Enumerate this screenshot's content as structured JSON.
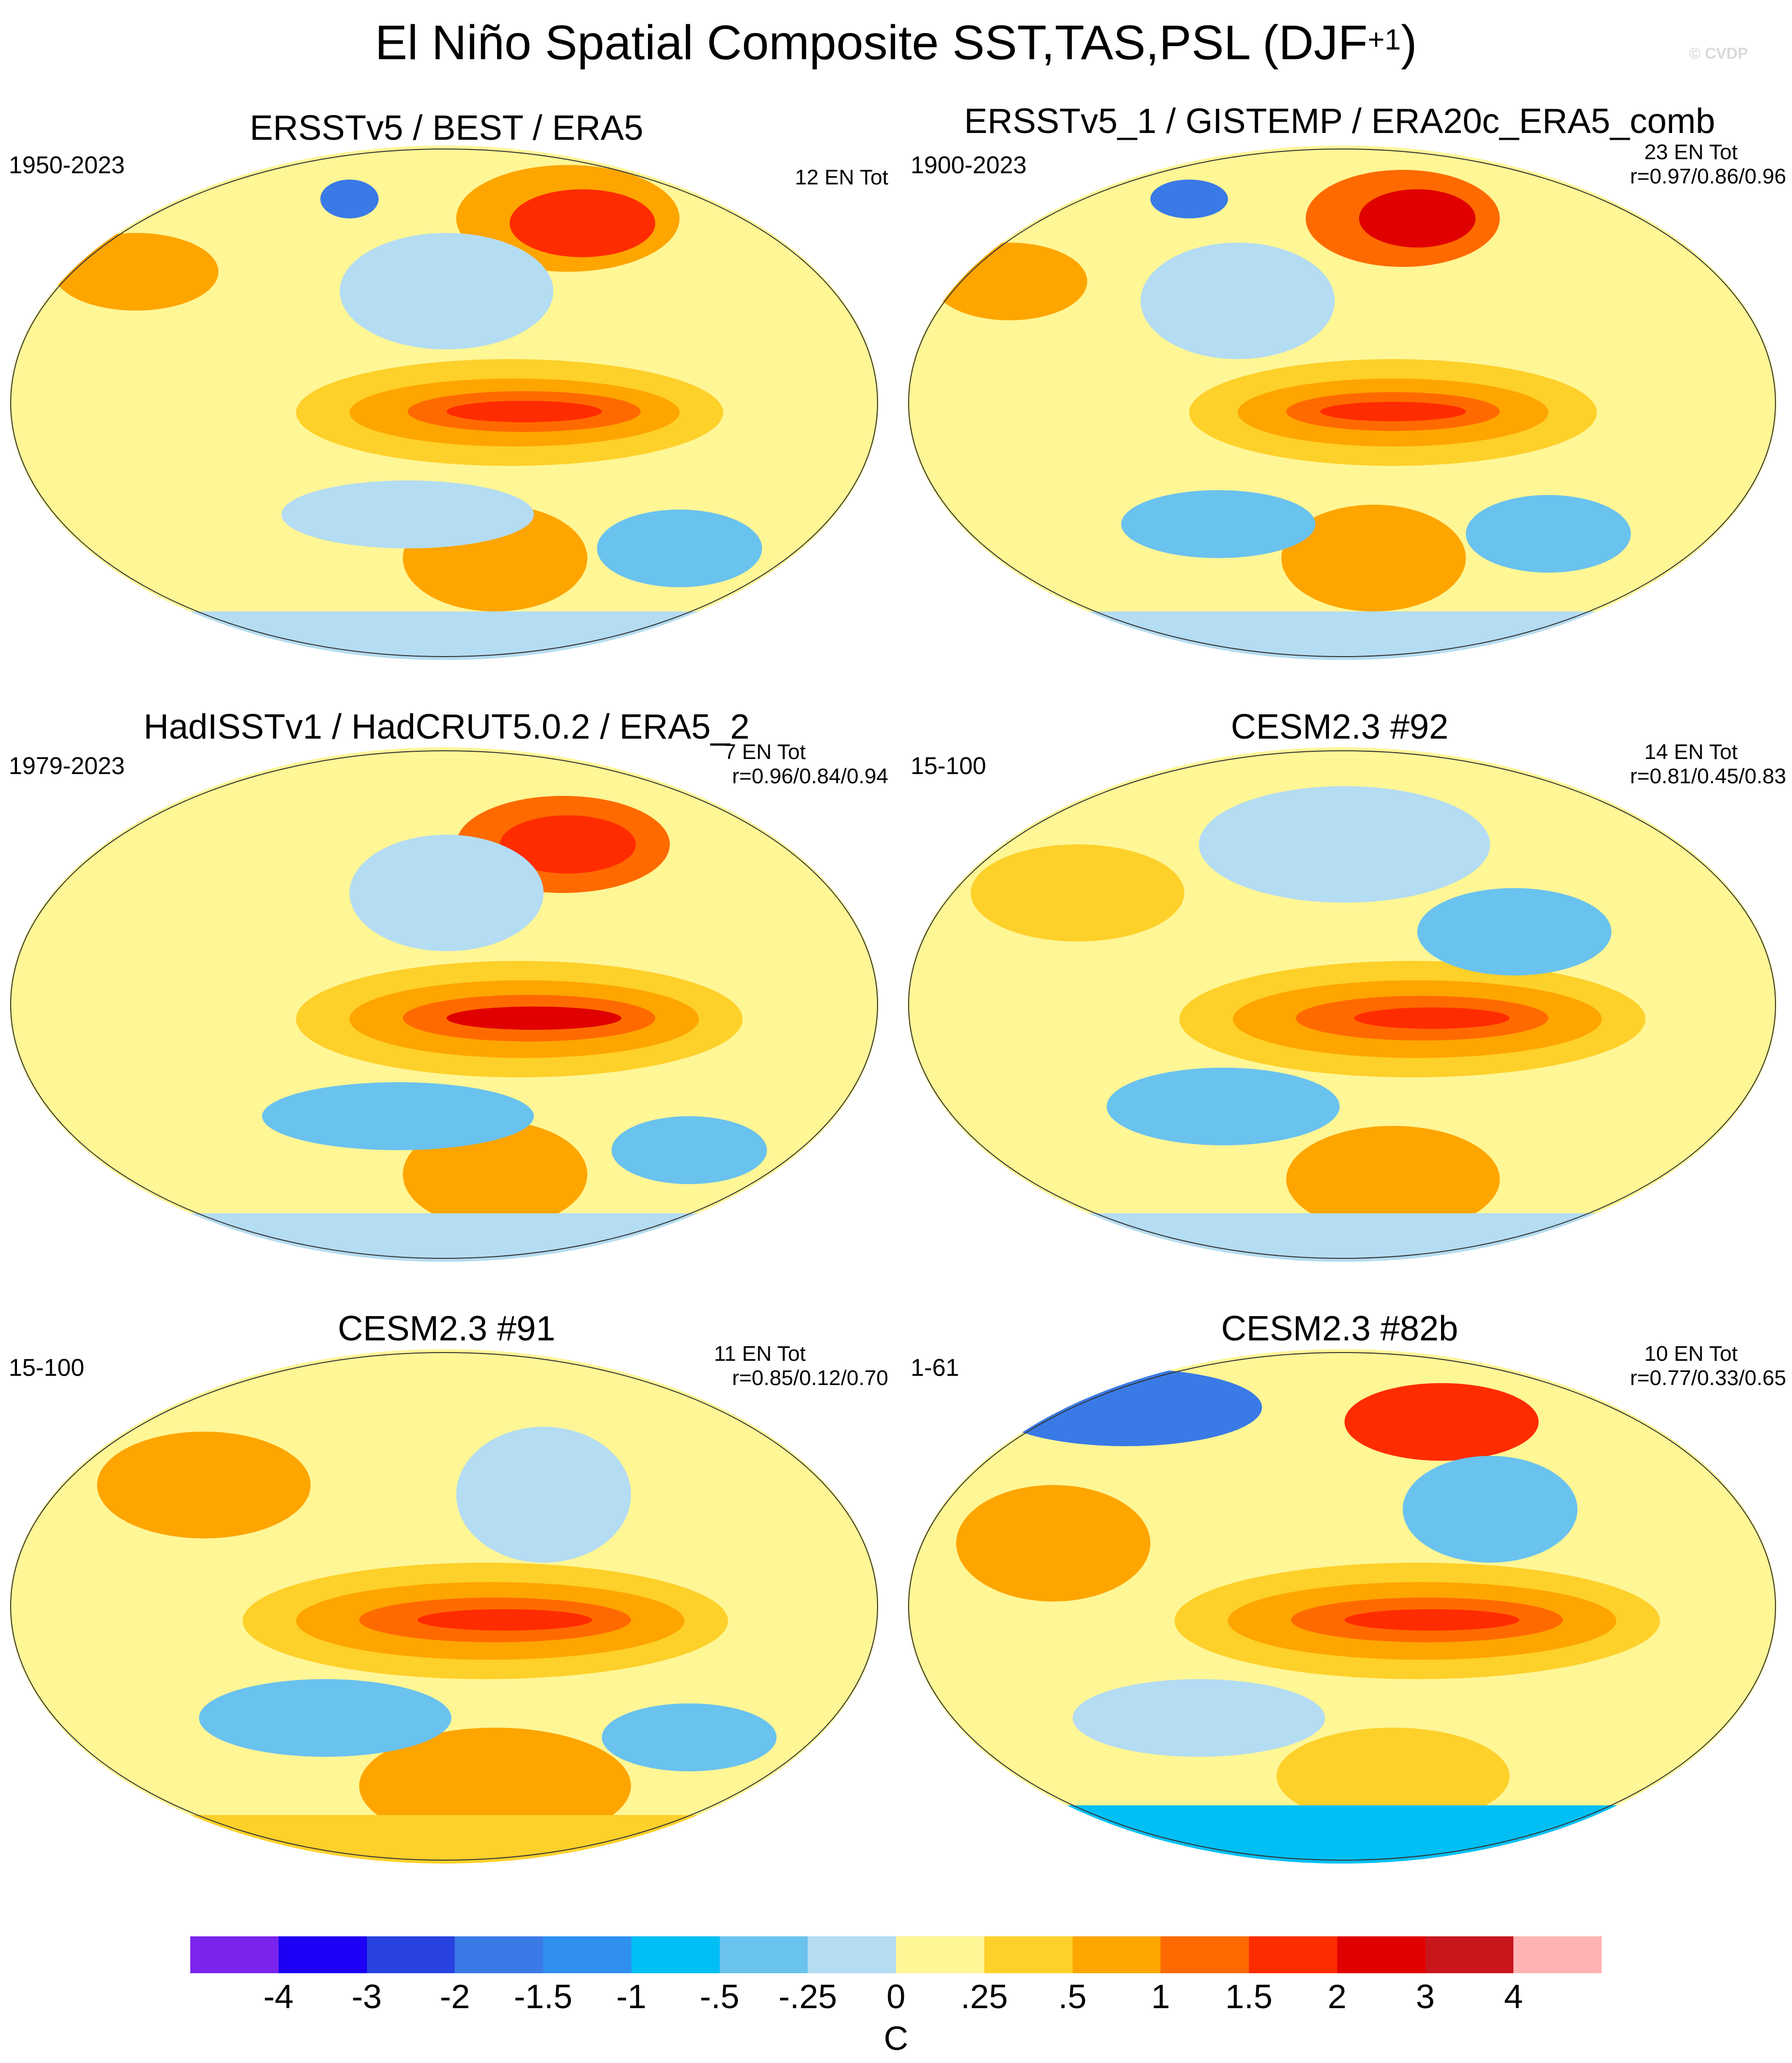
{
  "title": {
    "main": "El Niño Spatial Composite SST,TAS,PSL (DJF",
    "superscript": "+1",
    "close": ")"
  },
  "watermark": "© CVDP",
  "panels": [
    {
      "title": "ERSSTv5 / BEST / ERA5",
      "period": "1950-2023",
      "events": "12 EN Tot",
      "corr": ""
    },
    {
      "title": "ERSSTv5_1 / GISTEMP / ERA20c_ERA5_comb",
      "period": "1900-2023",
      "events": "23 EN Tot",
      "corr": "r=0.97/0.86/0.96"
    },
    {
      "title": "HadISSTv1 / HadCRUT5.0.2 / ERA5_2",
      "period": "1979-2023",
      "events": "7 EN Tot",
      "corr": "r=0.96/0.84/0.94"
    },
    {
      "title": "CESM2.3 #92",
      "period": "15-100",
      "events": "14 EN Tot",
      "corr": "r=0.81/0.45/0.83"
    },
    {
      "title": "CESM2.3 #91",
      "period": "15-100",
      "events": "11 EN Tot",
      "corr": "r=0.85/0.12/0.70"
    },
    {
      "title": "CESM2.3 #82b",
      "period": "1-61",
      "events": "10 EN Tot",
      "corr": "r=0.77/0.33/0.65"
    }
  ],
  "colorbar": {
    "colors": [
      "#7b24ee",
      "#1c00f5",
      "#2843e0",
      "#3a7ae6",
      "#2f90ef",
      "#00bff5",
      "#6ac2ee",
      "#b4dcf2",
      "#fff696",
      "#fed02a",
      "#fea500",
      "#ff6a00",
      "#ff2c00",
      "#e00000",
      "#c8161c",
      "#ffb3b3"
    ],
    "labels": [
      "-4",
      "-3",
      "-2",
      "-1.5",
      "-1",
      "-.5",
      "-.25",
      "0",
      ".25",
      ".5",
      "1",
      "1.5",
      "2",
      "3",
      "4"
    ],
    "units": "C"
  }
}
